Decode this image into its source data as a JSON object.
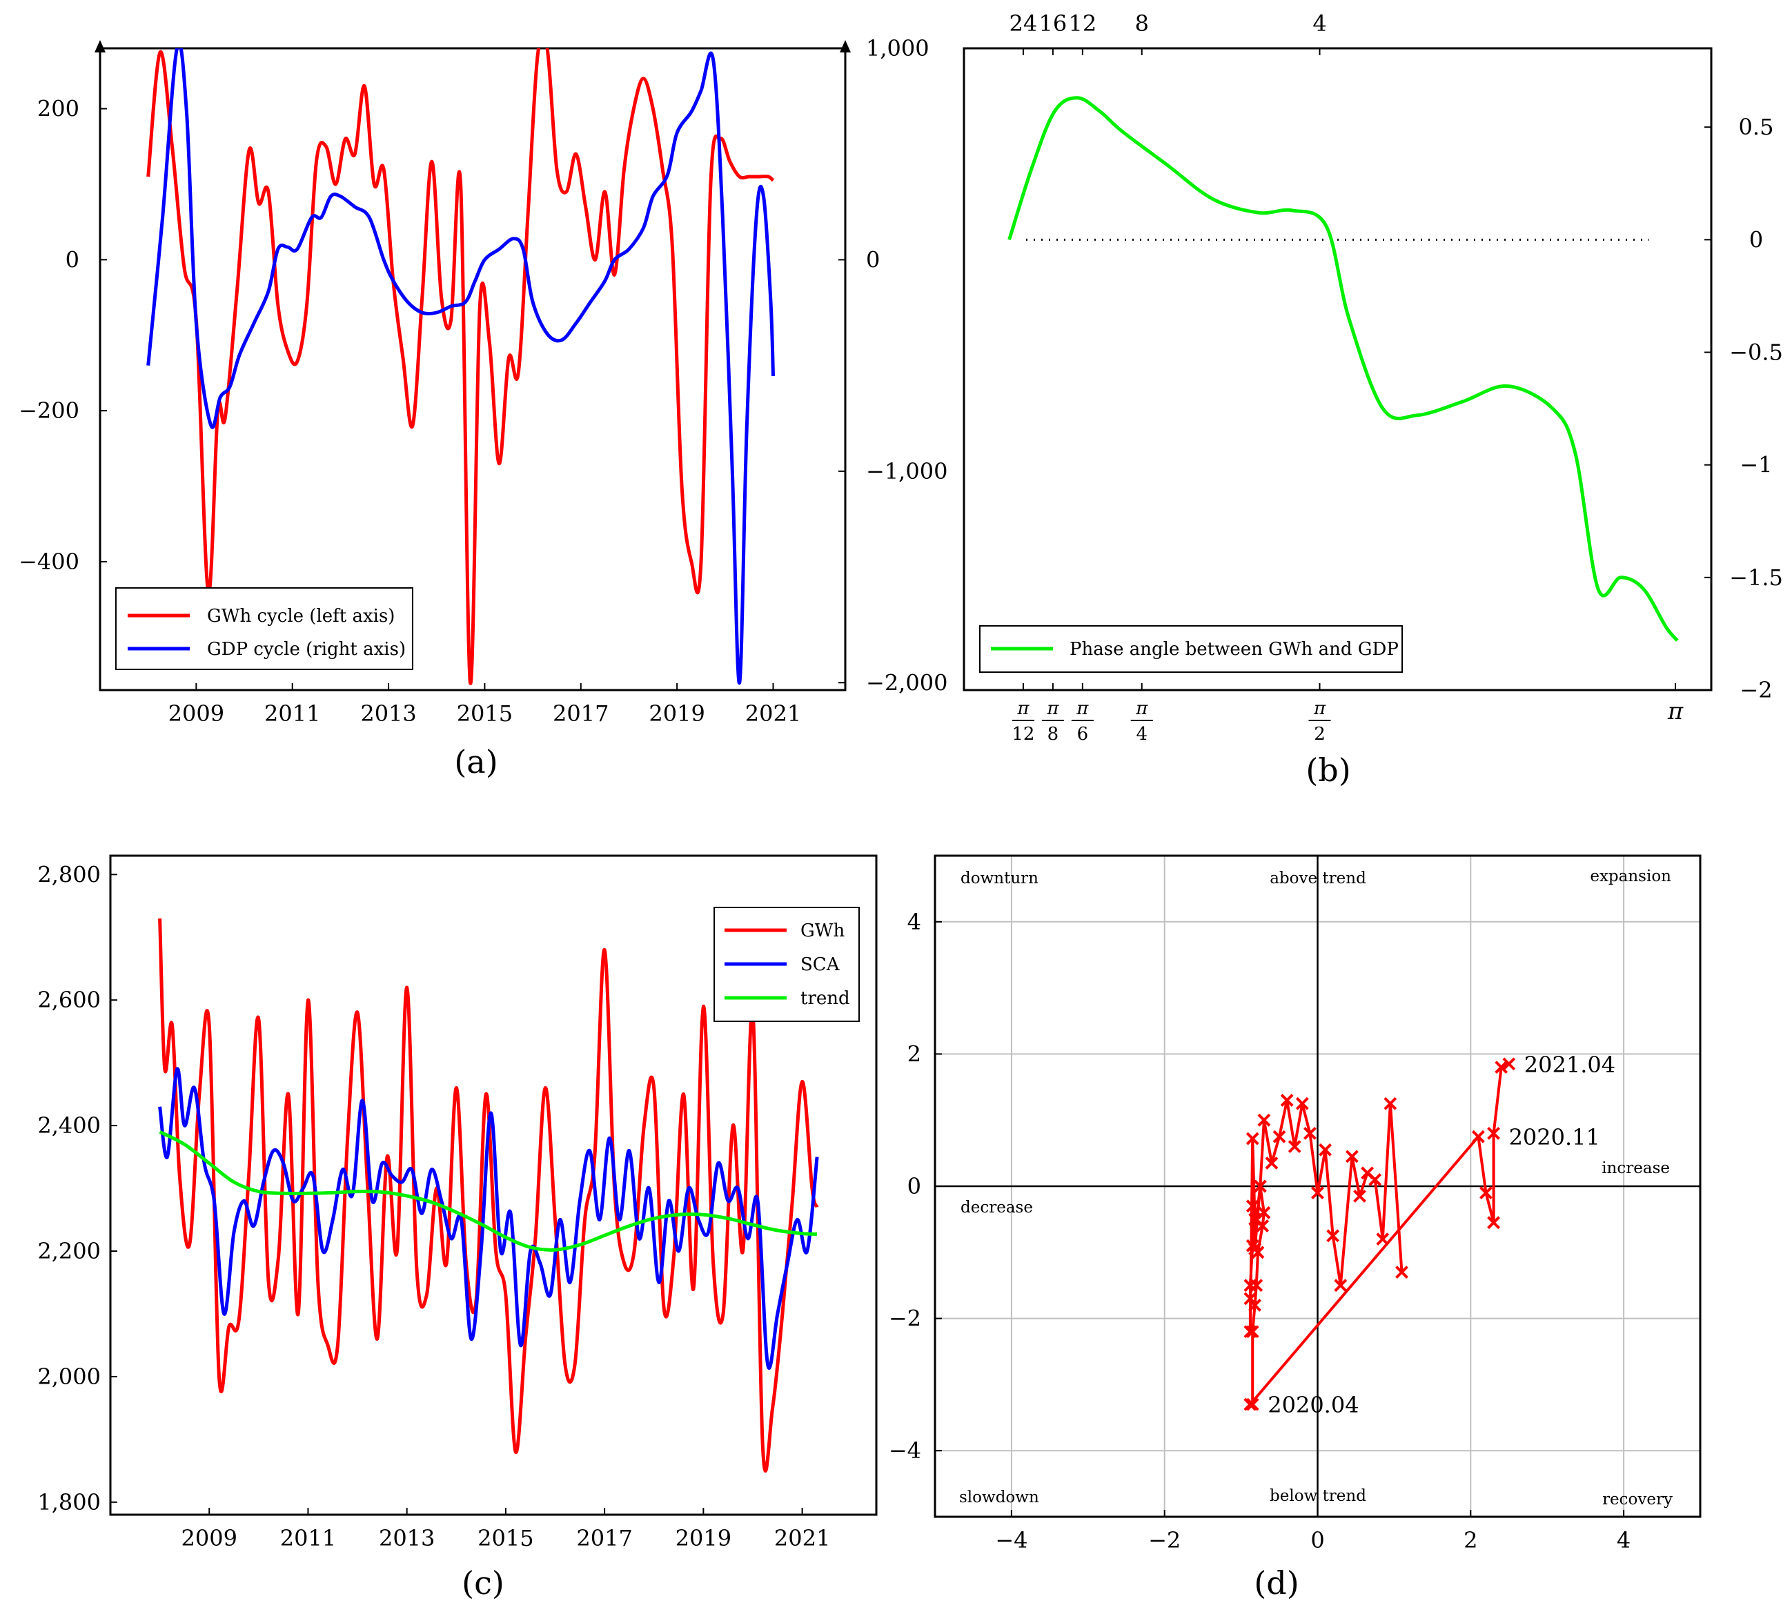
{
  "colors": {
    "red": "#ff0000",
    "blue": "#0000ff",
    "green": "#00ee00",
    "black": "#000000",
    "grid": "#c0c0c0"
  },
  "chart_data": [
    {
      "id": "a",
      "type": "line",
      "panel_label": "(a)",
      "x_ticks": [
        "2009",
        "2011",
        "2013",
        "2015",
        "2017",
        "2019",
        "2021"
      ],
      "x_tick_values": [
        2009,
        2011,
        2013,
        2015,
        2017,
        2019,
        2021
      ],
      "xlim": [
        2007.0,
        2022.5
      ],
      "left_ylim": [
        -570,
        280
      ],
      "left_y_ticks": [
        "200",
        "0",
        "−200",
        "−400"
      ],
      "left_y_tick_values": [
        200,
        0,
        -200,
        -400
      ],
      "right_ylim": [
        -2035,
        1000
      ],
      "right_y_ticks": [
        "1,000",
        "0",
        "−1,000",
        "−2,000"
      ],
      "right_y_tick_values": [
        1000,
        0,
        -1000,
        -2000
      ],
      "legend": [
        "GWh cycle (left axis)",
        "GDP cycle (right axis)"
      ],
      "legend_position": "bottom-left",
      "series": [
        {
          "name": "GWh cycle (left axis)",
          "axis": "left",
          "color": "#ff0000",
          "x": [
            2008.0,
            2008.25,
            2008.5,
            2008.75,
            2009.0,
            2009.25,
            2009.45,
            2009.6,
            2009.85,
            2010.1,
            2010.3,
            2010.5,
            2010.7,
            2010.9,
            2011.1,
            2011.3,
            2011.5,
            2011.7,
            2011.9,
            2012.1,
            2012.3,
            2012.5,
            2012.7,
            2012.9,
            2013.1,
            2013.3,
            2013.5,
            2013.7,
            2013.9,
            2014.1,
            2014.3,
            2014.5,
            2014.7,
            2014.9,
            2015.1,
            2015.3,
            2015.5,
            2015.7,
            2015.9,
            2016.1,
            2016.3,
            2016.5,
            2016.7,
            2016.9,
            2017.1,
            2017.3,
            2017.5,
            2017.7,
            2017.9,
            2018.1,
            2018.3,
            2018.5,
            2018.7,
            2018.9,
            2019.1,
            2019.3,
            2019.5,
            2019.7,
            2019.9,
            2020.1,
            2020.3,
            2020.5,
            2020.7,
            2020.9,
            2021.0
          ],
          "y": [
            110,
            275,
            150,
            -10,
            -80,
            -440,
            -200,
            -210,
            -40,
            145,
            75,
            90,
            -60,
            -120,
            -135,
            -60,
            130,
            150,
            100,
            160,
            140,
            230,
            100,
            120,
            -30,
            -130,
            -220,
            -50,
            130,
            -50,
            -80,
            100,
            -560,
            -60,
            -110,
            -270,
            -130,
            -150,
            60,
            270,
            280,
            120,
            90,
            140,
            70,
            0,
            90,
            -20,
            120,
            200,
            240,
            200,
            120,
            20,
            -300,
            -400,
            -400,
            100,
            160,
            130,
            110,
            110,
            110,
            110,
            105
          ]
        },
        {
          "name": "GDP cycle (right axis)",
          "axis": "right",
          "color": "#0000ff",
          "x": [
            2008.0,
            2008.3,
            2008.6,
            2008.8,
            2009.0,
            2009.3,
            2009.5,
            2009.7,
            2009.9,
            2010.2,
            2010.5,
            2010.7,
            2010.9,
            2011.1,
            2011.4,
            2011.6,
            2011.8,
            2012.0,
            2012.3,
            2012.6,
            2012.9,
            2013.1,
            2013.4,
            2013.7,
            2014.0,
            2014.3,
            2014.6,
            2014.8,
            2015.0,
            2015.3,
            2015.6,
            2015.8,
            2016.0,
            2016.3,
            2016.6,
            2016.9,
            2017.2,
            2017.5,
            2017.7,
            2018.0,
            2018.3,
            2018.5,
            2018.8,
            2019.0,
            2019.3,
            2019.5,
            2019.75,
            2019.95,
            2020.15,
            2020.3,
            2020.45,
            2020.65,
            2020.8,
            2020.95,
            2021.0
          ],
          "y": [
            -500,
            200,
            1000,
            700,
            -300,
            -780,
            -650,
            -600,
            -450,
            -300,
            -150,
            50,
            60,
            50,
            200,
            200,
            300,
            300,
            250,
            200,
            0,
            -100,
            -200,
            -250,
            -250,
            -220,
            -200,
            -100,
            0,
            50,
            100,
            50,
            -200,
            -350,
            -380,
            -300,
            -200,
            -100,
            0,
            50,
            150,
            300,
            400,
            600,
            700,
            800,
            950,
            200,
            -1000,
            -2000,
            -800,
            200,
            300,
            -200,
            -550
          ]
        }
      ]
    },
    {
      "id": "b",
      "type": "line",
      "panel_label": "(b)",
      "xlim": [
        0,
        3.3
      ],
      "x_tick_values": [
        0.2618,
        0.3927,
        0.5236,
        0.7854,
        1.5708,
        3.1416
      ],
      "x_tick_num": [
        "π",
        "π",
        "π",
        "π",
        "π",
        ""
      ],
      "x_tick_den": [
        "12",
        "8",
        "6",
        "4",
        "2",
        ""
      ],
      "x_tick_pi_label": "π",
      "top_ticks": [
        "24",
        "16",
        "12",
        "8",
        "4"
      ],
      "top_tick_values": [
        0.2618,
        0.3927,
        0.5236,
        0.7854,
        1.5708
      ],
      "ylim": [
        -2.0,
        0.85
      ],
      "y_ticks": [
        "0.5",
        "0",
        "−0.5",
        "−1",
        "−1.5",
        "−2"
      ],
      "y_tick_values": [
        0.5,
        0,
        -0.5,
        -1,
        -1.5,
        -2
      ],
      "reference_line_y": 0,
      "legend": [
        "Phase angle between GWh and GDP"
      ],
      "legend_position": "bottom-left",
      "series": [
        {
          "name": "Phase angle between GWh and GDP",
          "color": "#00ee00",
          "x": [
            0.2,
            0.3,
            0.4,
            0.5,
            0.6,
            0.7,
            0.9,
            1.1,
            1.3,
            1.45,
            1.6,
            1.7,
            1.85,
            2.0,
            2.2,
            2.4,
            2.6,
            2.7,
            2.8,
            2.9,
            3.0,
            3.1,
            3.15
          ],
          "y": [
            0.0,
            0.32,
            0.57,
            0.63,
            0.57,
            0.48,
            0.33,
            0.18,
            0.12,
            0.13,
            0.06,
            -0.35,
            -0.75,
            -0.78,
            -0.72,
            -0.65,
            -0.75,
            -0.95,
            -1.55,
            -1.5,
            -1.55,
            -1.72,
            -1.78
          ]
        }
      ]
    },
    {
      "id": "c",
      "type": "line",
      "panel_label": "(c)",
      "x_ticks": [
        "2009",
        "2011",
        "2013",
        "2015",
        "2017",
        "2019",
        "2021"
      ],
      "x_tick_values": [
        2009,
        2011,
        2013,
        2015,
        2017,
        2019,
        2021
      ],
      "xlim": [
        2007.0,
        2022.5
      ],
      "ylim": [
        1780,
        2830
      ],
      "y_ticks": [
        "2,800",
        "2,600",
        "2,400",
        "2,200",
        "2,000",
        "1,800"
      ],
      "y_tick_values": [
        2800,
        2600,
        2400,
        2200,
        2000,
        1800
      ],
      "legend": [
        "GWh",
        "SCA",
        "trend"
      ],
      "legend_position": "top-right",
      "series": [
        {
          "name": "GWh",
          "color": "#ff0000",
          "x": [
            2008.0,
            2008.1,
            2008.25,
            2008.4,
            2008.6,
            2008.8,
            2009.0,
            2009.2,
            2009.4,
            2009.6,
            2009.8,
            2010.0,
            2010.2,
            2010.4,
            2010.6,
            2010.8,
            2011.0,
            2011.2,
            2011.4,
            2011.6,
            2011.8,
            2012.0,
            2012.2,
            2012.4,
            2012.6,
            2012.8,
            2013.0,
            2013.2,
            2013.4,
            2013.6,
            2013.8,
            2014.0,
            2014.2,
            2014.4,
            2014.6,
            2014.8,
            2015.0,
            2015.2,
            2015.4,
            2015.6,
            2015.8,
            2016.0,
            2016.2,
            2016.4,
            2016.6,
            2016.8,
            2017.0,
            2017.2,
            2017.4,
            2017.6,
            2017.8,
            2018.0,
            2018.2,
            2018.4,
            2018.6,
            2018.8,
            2019.0,
            2019.2,
            2019.4,
            2019.6,
            2019.8,
            2020.0,
            2020.2,
            2020.4,
            2020.6,
            2020.8,
            2021.0,
            2021.2,
            2021.3
          ],
          "y": [
            2730,
            2490,
            2560,
            2320,
            2210,
            2450,
            2560,
            2000,
            2080,
            2090,
            2320,
            2570,
            2150,
            2190,
            2450,
            2100,
            2600,
            2150,
            2050,
            2050,
            2380,
            2580,
            2310,
            2060,
            2350,
            2200,
            2620,
            2170,
            2130,
            2300,
            2180,
            2460,
            2180,
            2120,
            2450,
            2200,
            2130,
            1880,
            2060,
            2220,
            2460,
            2250,
            2020,
            2020,
            2250,
            2350,
            2680,
            2300,
            2180,
            2200,
            2400,
            2460,
            2110,
            2190,
            2450,
            2140,
            2590,
            2180,
            2100,
            2400,
            2200,
            2580,
            1890,
            1950,
            2100,
            2280,
            2470,
            2300,
            2270
          ]
        },
        {
          "name": "SCA",
          "color": "#0000ff",
          "x": [
            2008.0,
            2008.15,
            2008.35,
            2008.5,
            2008.7,
            2008.9,
            2009.1,
            2009.3,
            2009.5,
            2009.7,
            2009.9,
            2010.1,
            2010.3,
            2010.5,
            2010.7,
            2010.9,
            2011.1,
            2011.3,
            2011.5,
            2011.7,
            2011.9,
            2012.1,
            2012.3,
            2012.5,
            2012.7,
            2012.9,
            2013.1,
            2013.3,
            2013.5,
            2013.7,
            2013.9,
            2014.1,
            2014.3,
            2014.5,
            2014.7,
            2014.9,
            2015.1,
            2015.3,
            2015.5,
            2015.7,
            2015.9,
            2016.1,
            2016.3,
            2016.5,
            2016.7,
            2016.9,
            2017.1,
            2017.3,
            2017.5,
            2017.7,
            2017.9,
            2018.1,
            2018.3,
            2018.5,
            2018.7,
            2018.9,
            2019.1,
            2019.3,
            2019.5,
            2019.7,
            2019.9,
            2020.1,
            2020.3,
            2020.5,
            2020.7,
            2020.9,
            2021.1,
            2021.3
          ],
          "y": [
            2430,
            2350,
            2490,
            2400,
            2460,
            2340,
            2280,
            2100,
            2230,
            2280,
            2240,
            2310,
            2360,
            2340,
            2280,
            2300,
            2320,
            2200,
            2250,
            2330,
            2290,
            2440,
            2280,
            2340,
            2320,
            2310,
            2330,
            2260,
            2330,
            2280,
            2220,
            2250,
            2060,
            2200,
            2420,
            2200,
            2260,
            2050,
            2200,
            2180,
            2130,
            2250,
            2150,
            2280,
            2360,
            2250,
            2380,
            2250,
            2360,
            2220,
            2300,
            2150,
            2280,
            2200,
            2300,
            2250,
            2230,
            2340,
            2280,
            2300,
            2220,
            2280,
            2020,
            2100,
            2180,
            2250,
            2200,
            2350
          ]
        },
        {
          "name": "trend",
          "color": "#00ee00",
          "x": [
            2008.0,
            2008.5,
            2009.0,
            2009.5,
            2010.0,
            2010.5,
            2011.0,
            2011.5,
            2012.0,
            2012.5,
            2013.0,
            2013.5,
            2014.0,
            2014.5,
            2015.0,
            2015.5,
            2016.0,
            2016.5,
            2017.0,
            2017.5,
            2018.0,
            2018.5,
            2019.0,
            2019.5,
            2020.0,
            2020.5,
            2021.0,
            2021.3
          ],
          "y": [
            2390,
            2370,
            2340,
            2310,
            2295,
            2292,
            2292,
            2293,
            2295,
            2294,
            2288,
            2278,
            2262,
            2243,
            2222,
            2206,
            2202,
            2210,
            2225,
            2240,
            2252,
            2258,
            2258,
            2252,
            2242,
            2233,
            2228,
            2227
          ]
        }
      ]
    },
    {
      "id": "d",
      "type": "scatter",
      "panel_label": "(d)",
      "xlim": [
        -5,
        5
      ],
      "ylim": [
        -5,
        5
      ],
      "x_ticks": [
        "−4",
        "−2",
        "0",
        "2",
        "4"
      ],
      "x_tick_values": [
        -4,
        -2,
        0,
        2,
        4
      ],
      "y_ticks": [
        "4",
        "2",
        "0",
        "−2",
        "−4"
      ],
      "y_tick_values": [
        4,
        2,
        0,
        -2,
        -4
      ],
      "grid": true,
      "quadrant_labels": {
        "top_left": "downturn",
        "top_center": "above trend",
        "top_right": "expansion",
        "bottom_left": "slowdown",
        "bottom_center": "below trend",
        "bottom_right": "recovery",
        "left_middle": "decrease",
        "right_middle": "increase"
      },
      "annotations": [
        {
          "text": "2021.04",
          "x": 2.5,
          "y": 1.85
        },
        {
          "text": "2020.11",
          "x": 2.3,
          "y": 0.75
        },
        {
          "text": "2020.04",
          "x": -0.85,
          "y": -3.3
        }
      ],
      "series": [
        {
          "name": "cycle path",
          "color": "#ff0000",
          "x": [
            1.1,
            0.95,
            0.85,
            0.75,
            0.65,
            0.55,
            0.45,
            0.3,
            0.2,
            0.1,
            0.0,
            -0.1,
            -0.2,
            -0.3,
            -0.4,
            -0.5,
            -0.6,
            -0.7,
            -0.75,
            -0.8,
            -0.85,
            -0.85,
            -0.88,
            -0.88,
            -0.88,
            -0.85,
            -0.82,
            -0.82,
            -0.75,
            -0.7,
            -0.72,
            -0.78,
            -0.8,
            -0.82,
            -0.85,
            -0.85,
            -0.88,
            -0.88,
            2.1,
            2.2,
            2.3,
            2.3,
            2.4,
            2.5
          ],
          "y": [
            -1.3,
            1.25,
            -0.8,
            0.1,
            0.2,
            -0.15,
            0.45,
            -1.5,
            -0.75,
            0.55,
            -0.1,
            0.8,
            1.25,
            0.6,
            1.3,
            0.75,
            0.35,
            1.0,
            0.0,
            -0.5,
            -0.3,
            -0.9,
            -1.5,
            -1.7,
            -2.2,
            0.72,
            -0.5,
            -0.95,
            0.0,
            -0.4,
            -0.6,
            -1.0,
            -1.5,
            -1.8,
            -2.2,
            -3.3,
            -3.3,
            -3.3,
            0.75,
            -0.1,
            -0.55,
            0.8,
            1.8,
            1.85
          ]
        }
      ]
    }
  ]
}
